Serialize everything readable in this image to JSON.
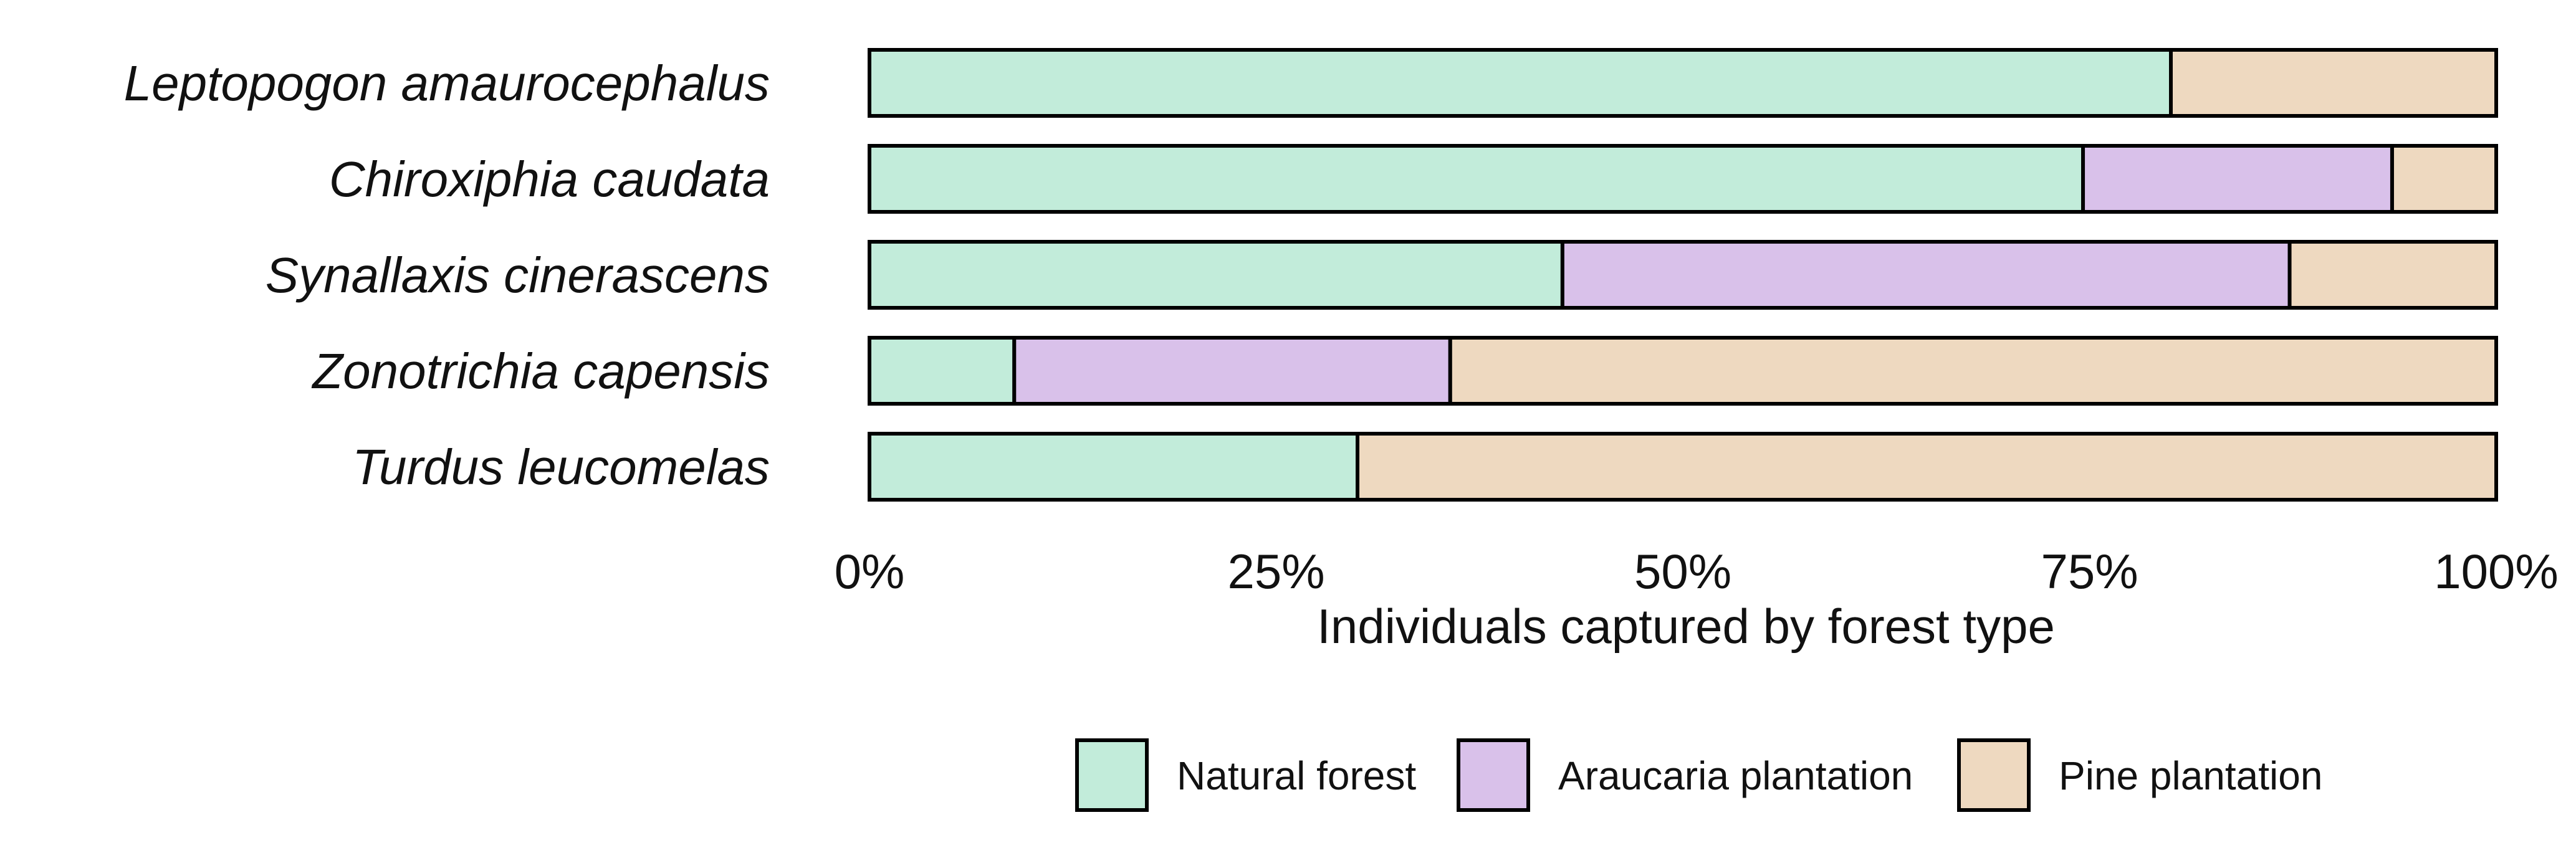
{
  "chart_data": {
    "type": "bar",
    "orientation": "horizontal",
    "stacked": true,
    "normalized": true,
    "categories": [
      "Leptopogon amaurocephalus",
      "Chiroxiphia caudata",
      "Synallaxis cinerascens",
      "Zonotrichia capensis",
      "Turdus leucomelas"
    ],
    "series": [
      {
        "name": "Natural forest",
        "color": "#c2ecda",
        "values": [
          0.8,
          0.746,
          0.426,
          0.089,
          0.3
        ]
      },
      {
        "name": "Araucaria plantation",
        "color": "#d9c1ea",
        "values": [
          0.0,
          0.19,
          0.447,
          0.268,
          0.0
        ]
      },
      {
        "name": "Pine plantation",
        "color": "#eed9c0",
        "values": [
          0.2,
          0.064,
          0.127,
          0.643,
          0.7
        ]
      }
    ],
    "xlim": [
      0,
      1
    ],
    "xticks": [
      0,
      0.25,
      0.5,
      0.75,
      1
    ],
    "xtick_labels": [
      "0%",
      "25%",
      "50%",
      "75%",
      "100%"
    ],
    "xlabel": "Individuals captured by forest type",
    "ylabel": "",
    "title": "",
    "legend_position": "bottom",
    "grid": false
  }
}
